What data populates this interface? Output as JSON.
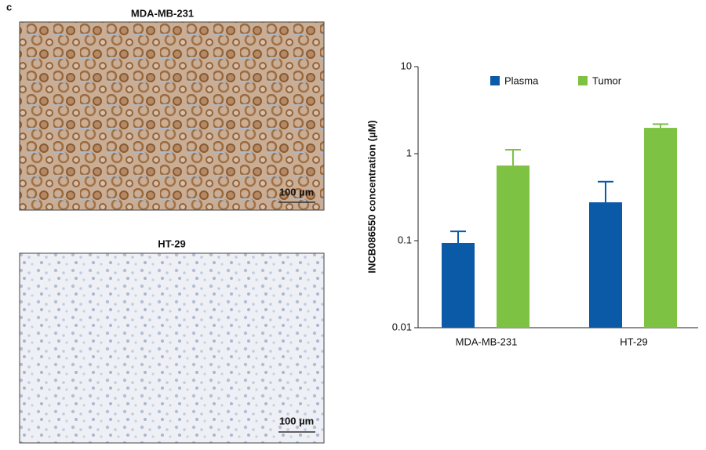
{
  "panel_label": "c",
  "images": [
    {
      "title": "MDA-MB-231",
      "scale_bar": "100 µm"
    },
    {
      "title": "HT-29",
      "scale_bar": "100 µm"
    }
  ],
  "chart_data": {
    "type": "bar",
    "y_label": "INCB086550 concentration (µM)",
    "categories": [
      "MDA-MB-231",
      "HT-29"
    ],
    "series": [
      {
        "name": "Plasma",
        "color": "#0a5aa8",
        "values": [
          0.094,
          0.276
        ],
        "errors": [
          0.034,
          0.2
        ]
      },
      {
        "name": "Tumor",
        "color": "#7dc242",
        "values": [
          0.73,
          1.98
        ],
        "errors": [
          0.38,
          0.2
        ]
      }
    ],
    "ylim": [
      0.01,
      10
    ],
    "yticks": [
      0.01,
      0.1,
      1,
      10
    ],
    "log_scale": true,
    "legend": "top"
  }
}
